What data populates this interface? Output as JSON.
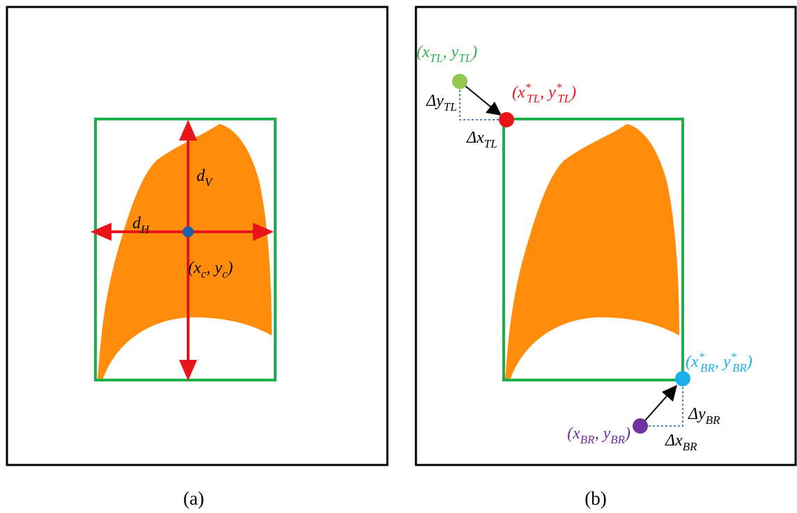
{
  "panels": [
    {
      "caption": "(a)",
      "labels": [
        {
          "color": "#000000",
          "runs": [
            {
              "text": "d"
            },
            {
              "sub": "V"
            }
          ]
        },
        {
          "color": "#000000",
          "runs": [
            {
              "text": "d"
            },
            {
              "sub": "H"
            }
          ]
        },
        {
          "color": "#000000",
          "runs": [
            {
              "text": "(x"
            },
            {
              "sub": "c"
            },
            {
              "text": ", y"
            },
            {
              "sub": "c"
            },
            {
              "text": ")"
            }
          ]
        }
      ]
    },
    {
      "caption": "(b)",
      "labels": [
        {
          "color": "#2eb050",
          "runs": [
            {
              "text": "(x"
            },
            {
              "sub": "TL"
            },
            {
              "text": ", y"
            },
            {
              "sub": "TL"
            },
            {
              "text": ")"
            }
          ]
        },
        {
          "color": "#e8141a",
          "runs": [
            {
              "text": "(x"
            },
            {
              "sup": "*"
            },
            {
              "sub": "TL"
            },
            {
              "text": ", y"
            },
            {
              "sup": "*"
            },
            {
              "sub": "TL"
            },
            {
              "text": ")"
            }
          ]
        },
        {
          "color": "#000000",
          "runs": [
            {
              "text": "Δy"
            },
            {
              "sub": "TL"
            }
          ]
        },
        {
          "color": "#000000",
          "runs": [
            {
              "text": "Δx"
            },
            {
              "sub": "TL"
            }
          ]
        },
        {
          "color": "#1ab0ea",
          "runs": [
            {
              "text": "(x"
            },
            {
              "sup": "*"
            },
            {
              "sub": "BR"
            },
            {
              "text": ", y"
            },
            {
              "sup": "*"
            },
            {
              "sub": "BR"
            },
            {
              "text": ")"
            }
          ]
        },
        {
          "color": "#000000",
          "runs": [
            {
              "text": "Δy"
            },
            {
              "sub": "BR"
            }
          ]
        },
        {
          "color": "#000000",
          "runs": [
            {
              "text": "Δx"
            },
            {
              "sub": "BR"
            }
          ]
        },
        {
          "color": "#7030a0",
          "runs": [
            {
              "text": "(x"
            },
            {
              "sub": "BR"
            },
            {
              "text": ", y"
            },
            {
              "sub": "BR"
            },
            {
              "text": ")"
            }
          ]
        }
      ]
    }
  ]
}
